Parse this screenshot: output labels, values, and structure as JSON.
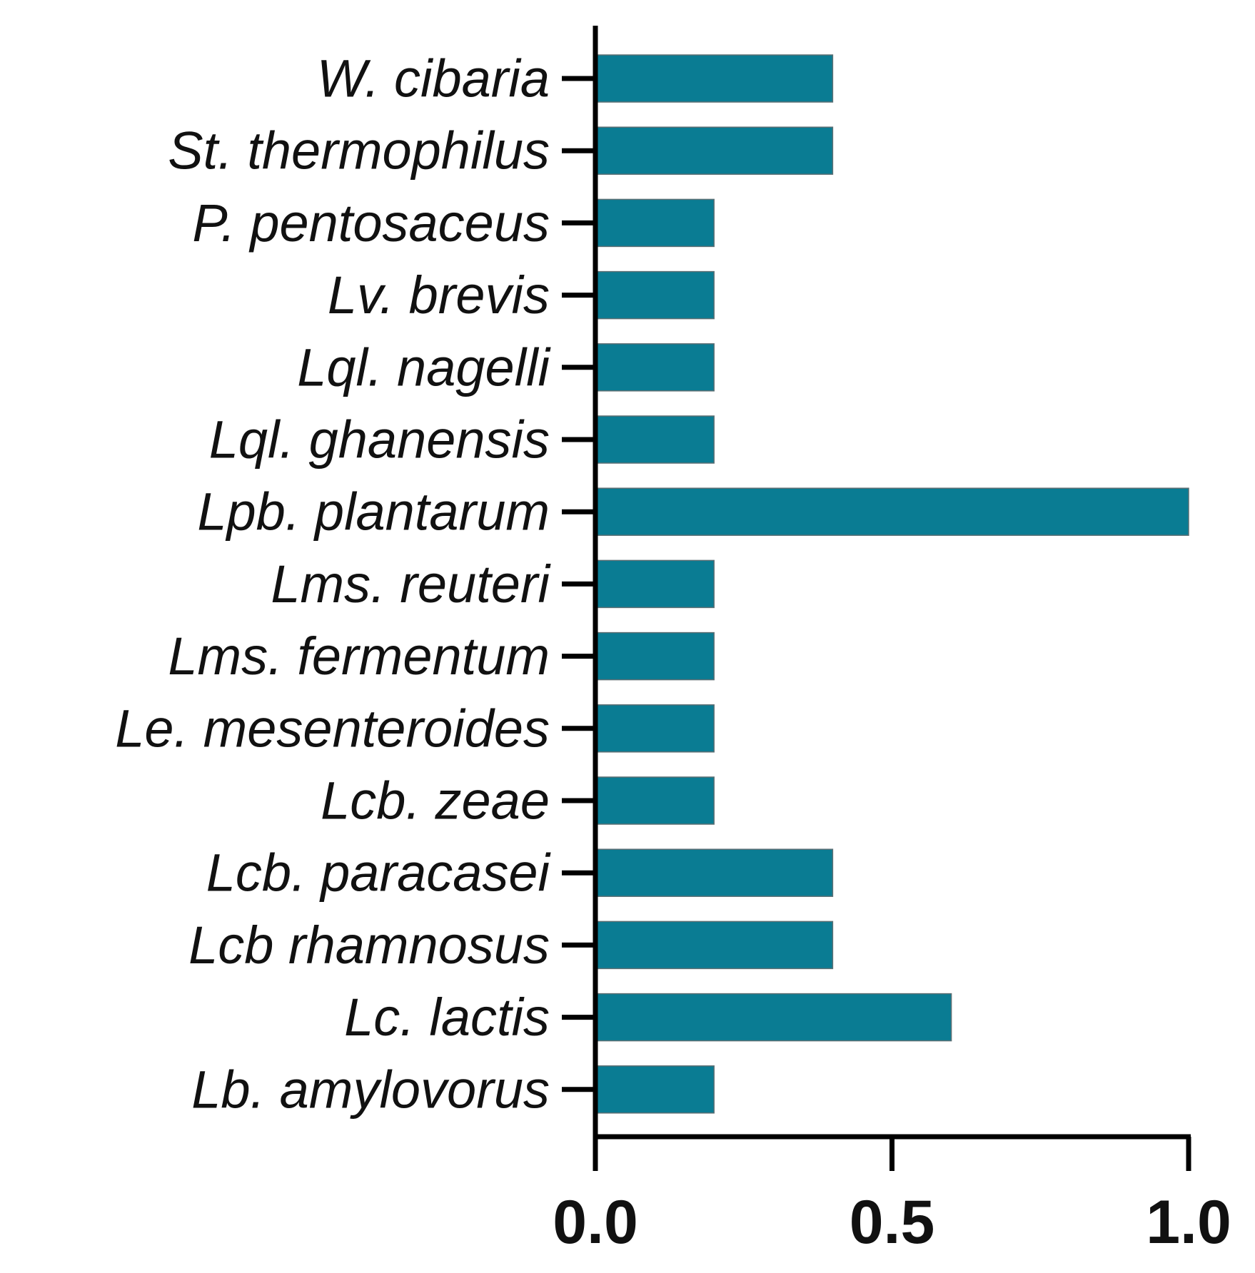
{
  "chart_data": {
    "type": "bar",
    "orientation": "horizontal",
    "categories": [
      "W. cibaria",
      "St. thermophilus",
      "P. pentosaceus",
      "Lv. brevis",
      "Lql. nagelli",
      "Lql. ghanensis",
      "Lpb. plantarum",
      "Lms. reuteri",
      "Lms. fermentum",
      "Le. mesenteroides",
      "Lcb. zeae",
      "Lcb. paracasei",
      "Lcb rhamnosus",
      "Lc. lactis",
      "Lb. amylovorus"
    ],
    "values": [
      0.4,
      0.4,
      0.2,
      0.2,
      0.2,
      0.2,
      1.0,
      0.2,
      0.2,
      0.2,
      0.2,
      0.4,
      0.4,
      0.6,
      0.2
    ],
    "x_ticks": [
      "0.0",
      "0.5",
      "1.0"
    ],
    "xlim": [
      0,
      1.0
    ],
    "title": "",
    "xlabel": "",
    "ylabel": "",
    "bar_color": "#0a7c93",
    "grid": false,
    "legend": "none"
  }
}
